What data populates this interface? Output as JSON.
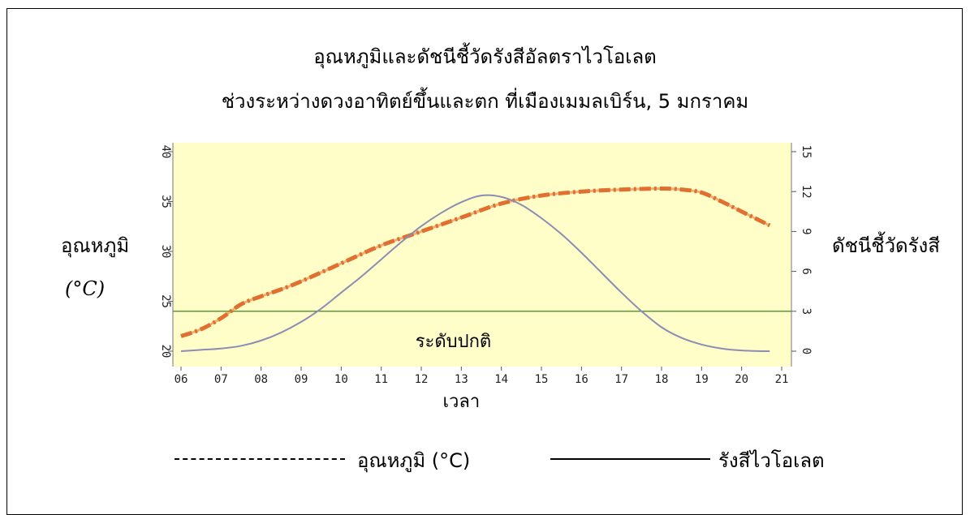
{
  "colors": {
    "plot_background": "#fffec8",
    "temperature_series": "#e07030",
    "uv_series": "#8c8cb4",
    "normal_level_line": "#5a9a3a"
  },
  "title_line1": "อุณหภูมิและดัชนีชี้วัดรังสีอัลตราไวโอเลต",
  "title_line2": "ช่วงระหว่างดวงอาทิตย์ขึ้นและตก ที่เมืองเมมลเบิร์น, 5 มกราคม",
  "y_left_label": "อุณหภูมิ",
  "y_left_unit": "(°C)",
  "y_right_label": "ดัชนีชี้วัดรังสี",
  "x_label": "เวลา",
  "normal_label": "ระดับปกติ",
  "legend": {
    "temperature_label": "อุณหภูมิ (°C)",
    "uv_label": "รังสีไวโอเลต"
  },
  "chart_data": {
    "type": "line",
    "x_ticks": [
      "06",
      "07",
      "08",
      "09",
      "10",
      "11",
      "12",
      "13",
      "14",
      "15",
      "16",
      "17",
      "18",
      "19",
      "20",
      "21"
    ],
    "y_left_ticks": [
      "20",
      "25",
      "30",
      "35",
      "40"
    ],
    "y_right_ticks": [
      "0",
      "3",
      "6",
      "9",
      "12",
      "15"
    ],
    "xlim": [
      6,
      21
    ],
    "y_left_lim": [
      20,
      40
    ],
    "y_right_lim": [
      0,
      15
    ],
    "normal_level_left": 24,
    "series": [
      {
        "name": "อุณหภูมิ (°C)",
        "axis": "left",
        "style": "dash-dot",
        "x": [
          6.0,
          6.5,
          7.0,
          7.5,
          8.0,
          8.5,
          9.0,
          10.0,
          11.0,
          12.0,
          13.0,
          14.0,
          15.0,
          16.0,
          17.0,
          18.0,
          18.5,
          19.0,
          19.5,
          20.0,
          20.7
        ],
        "y": [
          21.5,
          22.2,
          23.3,
          24.7,
          25.5,
          26.2,
          27.0,
          28.8,
          30.6,
          32.0,
          33.4,
          34.8,
          35.6,
          36.0,
          36.2,
          36.3,
          36.2,
          35.9,
          35.0,
          34.0,
          32.6
        ]
      },
      {
        "name": "รังสีไวโอเลต",
        "axis": "right",
        "style": "solid",
        "x": [
          6.0,
          6.5,
          7.0,
          7.5,
          8.0,
          8.5,
          9.0,
          9.5,
          10.0,
          10.5,
          11.0,
          11.5,
          12.0,
          12.5,
          13.0,
          13.5,
          14.0,
          14.5,
          15.0,
          15.5,
          16.0,
          16.5,
          17.0,
          17.5,
          18.0,
          18.5,
          19.0,
          19.5,
          20.0,
          20.5,
          20.7
        ],
        "y": [
          0.0,
          0.1,
          0.2,
          0.4,
          0.8,
          1.4,
          2.2,
          3.2,
          4.4,
          5.6,
          6.9,
          8.2,
          9.4,
          10.4,
          11.2,
          11.7,
          11.6,
          11.0,
          10.0,
          8.8,
          7.4,
          5.9,
          4.4,
          3.0,
          1.8,
          1.0,
          0.5,
          0.2,
          0.05,
          0.0,
          0.0
        ]
      }
    ]
  }
}
